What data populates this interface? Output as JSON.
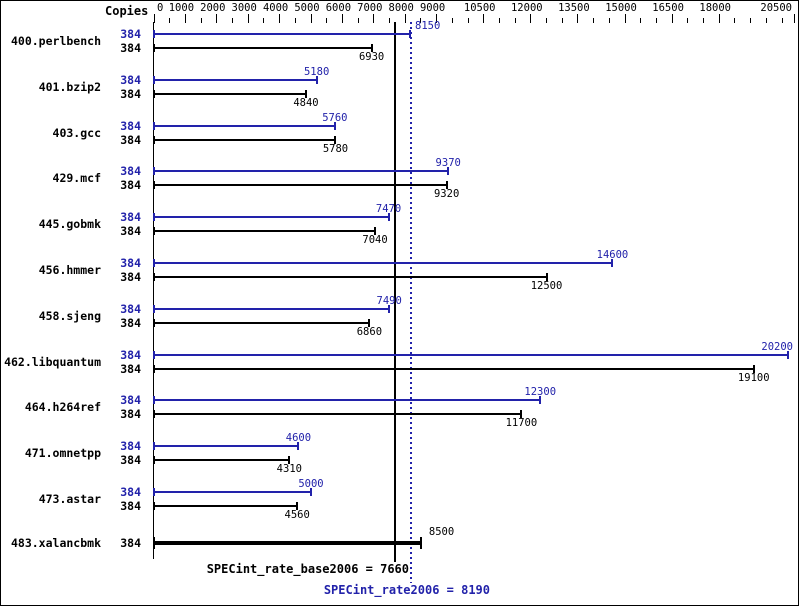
{
  "header": {
    "copies_label": "Copies"
  },
  "colors": {
    "peak_blue": "#2222aa",
    "base_black": "#000000",
    "background": "#ffffff"
  },
  "axis": {
    "ticks": [
      {
        "v": 0,
        "label": "0"
      },
      {
        "v": 1000,
        "label": "1000"
      },
      {
        "v": 2000,
        "label": "2000"
      },
      {
        "v": 3000,
        "label": "3000"
      },
      {
        "v": 4000,
        "label": "4000"
      },
      {
        "v": 5000,
        "label": "5000"
      },
      {
        "v": 6000,
        "label": "6000"
      },
      {
        "v": 7000,
        "label": "7000"
      },
      {
        "v": 8000,
        "label": "8000"
      },
      {
        "v": 9000,
        "label": "9000"
      },
      {
        "v": 10500,
        "label": "10500"
      },
      {
        "v": 12000,
        "label": "12000"
      },
      {
        "v": 13500,
        "label": "13500"
      },
      {
        "v": 15000,
        "label": "15000"
      },
      {
        "v": 16500,
        "label": "16500"
      },
      {
        "v": 18000,
        "label": "18000"
      },
      {
        "v": 20500,
        "label": "20500",
        "edge": true
      }
    ],
    "minor_step": 500,
    "minor_max": 20000
  },
  "benchmarks": [
    {
      "name": "400.perlbench",
      "copies": "384",
      "peak": 8150,
      "base": 6930
    },
    {
      "name": "401.bzip2",
      "copies": "384",
      "peak": 5180,
      "base": 4840
    },
    {
      "name": "403.gcc",
      "copies": "384",
      "peak": 5760,
      "base": 5780
    },
    {
      "name": "429.mcf",
      "copies": "384",
      "peak": 9370,
      "base": 9320
    },
    {
      "name": "445.gobmk",
      "copies": "384",
      "peak": 7470,
      "base": 7040
    },
    {
      "name": "456.hmmer",
      "copies": "384",
      "peak": 14600,
      "base": 12500
    },
    {
      "name": "458.sjeng",
      "copies": "384",
      "peak": 7490,
      "base": 6860
    },
    {
      "name": "462.libquantum",
      "copies": "384",
      "peak": 20200,
      "base": 19100
    },
    {
      "name": "464.h264ref",
      "copies": "384",
      "peak": 12300,
      "base": 11700
    },
    {
      "name": "471.omnetpp",
      "copies": "384",
      "peak": 4600,
      "base": 4310
    },
    {
      "name": "473.astar",
      "copies": "384",
      "peak": 5000,
      "base": 4560
    },
    {
      "name": "483.xalancbmk",
      "copies": "384",
      "peak": null,
      "base": 8500,
      "base_only": true
    }
  ],
  "summary": {
    "base_text": "SPECint_rate_base2006 = 7660",
    "peak_text": "SPECint_rate2006 = 8190",
    "base_value": 7660,
    "peak_value": 8190
  },
  "chart_data": {
    "type": "bar",
    "orientation": "horizontal",
    "title": "SPECint_rate2006 benchmark results",
    "xlabel": "",
    "ylabel": "Copies",
    "categories": [
      "400.perlbench",
      "401.bzip2",
      "403.gcc",
      "429.mcf",
      "445.gobmk",
      "456.hmmer",
      "458.sjeng",
      "462.libquantum",
      "464.h264ref",
      "471.omnetpp",
      "473.astar",
      "483.xalancbmk"
    ],
    "copies": [
      384,
      384,
      384,
      384,
      384,
      384,
      384,
      384,
      384,
      384,
      384,
      384
    ],
    "series": [
      {
        "name": "peak (SPECint_rate2006)",
        "color": "#2222aa",
        "values": [
          8150,
          5180,
          5760,
          9370,
          7470,
          14600,
          7490,
          20200,
          12300,
          4600,
          5000,
          null
        ]
      },
      {
        "name": "base (SPECint_rate_base2006)",
        "color": "#000000",
        "values": [
          6930,
          4840,
          5780,
          9320,
          7040,
          12500,
          6860,
          19100,
          11700,
          4310,
          4560,
          8500
        ]
      }
    ],
    "reference_lines": [
      {
        "label": "SPECint_rate_base2006",
        "value": 7660,
        "style": "solid",
        "color": "#000000"
      },
      {
        "label": "SPECint_rate2006",
        "value": 8190,
        "style": "dotted",
        "color": "#2222aa"
      }
    ],
    "x_tick_labels": [
      "0",
      "1000",
      "2000",
      "3000",
      "4000",
      "5000",
      "6000",
      "7000",
      "8000",
      "9000",
      "10500",
      "12000",
      "13500",
      "15000",
      "16500",
      "18000",
      "20500"
    ],
    "xlim": [
      0,
      20500
    ],
    "grid": false,
    "legend_position": "none"
  }
}
